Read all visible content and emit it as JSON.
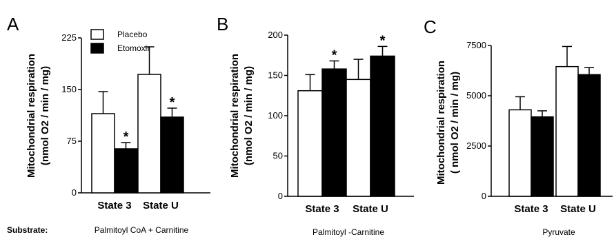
{
  "substrate_label": "Substrate:",
  "legend": [
    {
      "name": "Placebo",
      "fill": "#ffffff"
    },
    {
      "name": "Etomoxir",
      "fill": "#000000"
    }
  ],
  "chart_data": [
    {
      "type": "bar",
      "panel": "A",
      "ylabel": [
        "Mitochondrial respiration",
        "(nmol O2 / min / mg)"
      ],
      "ylim": [
        0,
        225
      ],
      "yticks": [
        0,
        75,
        150,
        225
      ],
      "categories": [
        "State 3",
        "State U"
      ],
      "series": [
        {
          "name": "Placebo",
          "values": [
            115,
            172
          ],
          "errors": [
            32,
            40
          ],
          "sig": [
            false,
            false
          ]
        },
        {
          "name": "Etomoxir",
          "values": [
            64,
            110
          ],
          "errors": [
            9,
            13
          ],
          "sig": [
            true,
            true
          ]
        }
      ],
      "substrate": "Palmitoyl CoA + Carnitine"
    },
    {
      "type": "bar",
      "panel": "B",
      "ylabel": [
        "Mitochondrial respiration",
        "(nmol O2 / min / mg)"
      ],
      "ylim": [
        0,
        200
      ],
      "yticks": [
        0,
        50,
        100,
        150,
        200
      ],
      "categories": [
        "State 3",
        "State U"
      ],
      "series": [
        {
          "name": "Placebo",
          "values": [
            131,
            145
          ],
          "errors": [
            20,
            25
          ],
          "sig": [
            false,
            false
          ]
        },
        {
          "name": "Etomoxir",
          "values": [
            158,
            174
          ],
          "errors": [
            10,
            12
          ],
          "sig": [
            true,
            true
          ]
        }
      ],
      "substrate": "Palmitoyl -Carnitine"
    },
    {
      "type": "bar",
      "panel": "C",
      "ylabel": [
        "Mitochondrial respiration",
        "( nmol O2 / min / mg)"
      ],
      "ylim": [
        0,
        7500
      ],
      "yticks": [
        0,
        2500,
        5000,
        7500
      ],
      "categories": [
        "State 3",
        "State U"
      ],
      "series": [
        {
          "name": "Placebo",
          "values": [
            4300,
            6450
          ],
          "errors": [
            650,
            1000
          ],
          "sig": [
            false,
            false
          ]
        },
        {
          "name": "Etomoxir",
          "values": [
            3950,
            6050
          ],
          "errors": [
            300,
            350
          ],
          "sig": [
            false,
            false
          ]
        }
      ],
      "substrate": "Pyruvate"
    }
  ]
}
